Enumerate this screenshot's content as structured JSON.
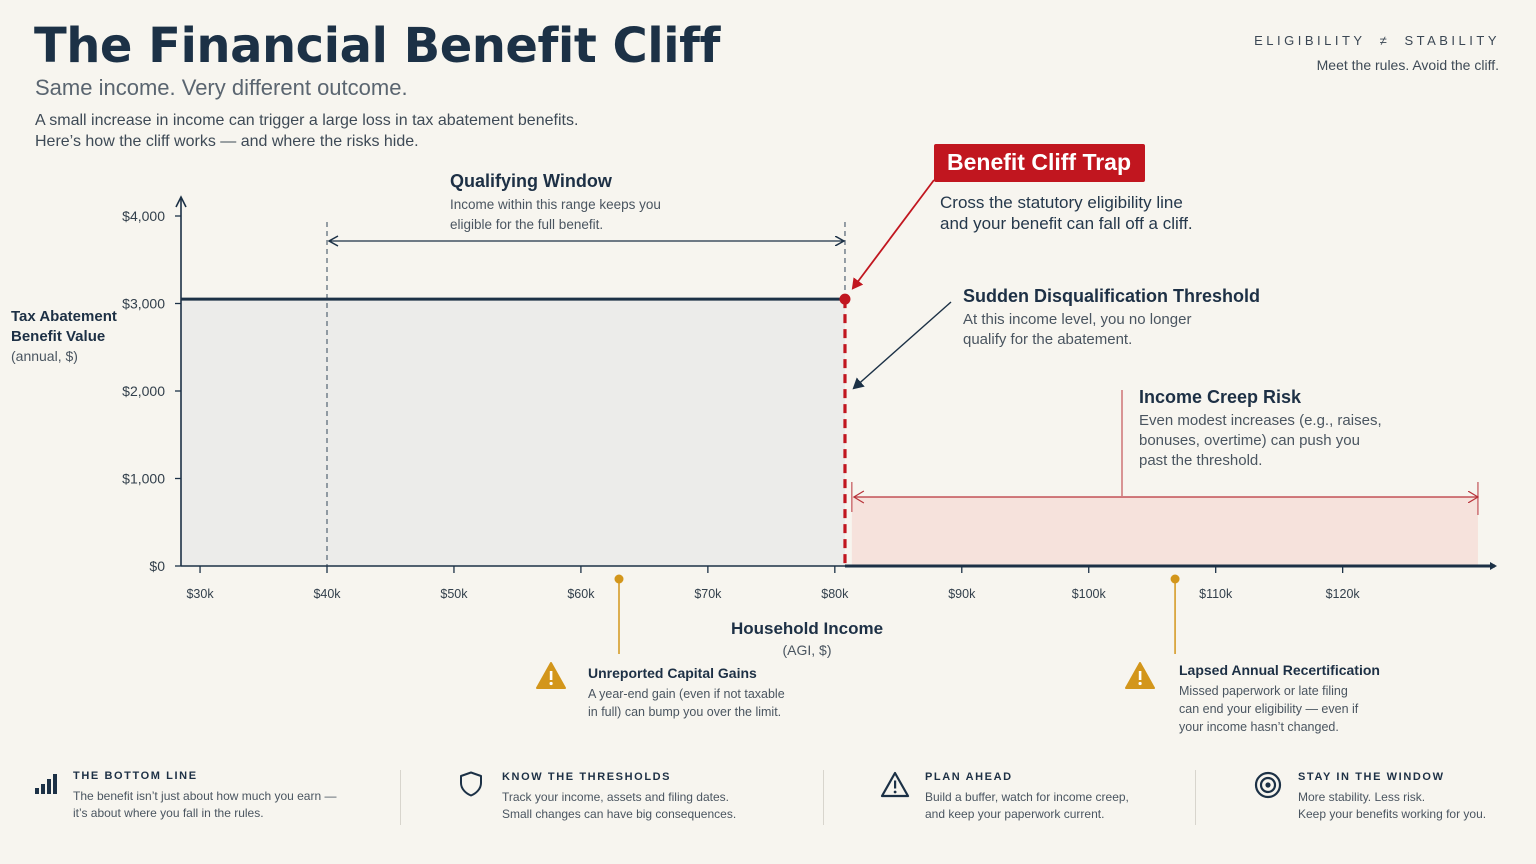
{
  "header": {
    "title": "The Financial Benefit Cliff",
    "subtitle": "Same income. Very different outcome.",
    "intro_line1": "A small increase in income can trigger a large loss in tax abatement benefits.",
    "intro_line2": "Here’s how the cliff works — and where the risks hide.",
    "tag": "ELIGIBILITY  ≠  STABILITY",
    "tag_sub": "Meet the rules. Avoid the cliff."
  },
  "chart_data": {
    "type": "area",
    "title": "The Financial Benefit Cliff",
    "xlabel": "Household Income",
    "xlabel_sub": "(AGI, $)",
    "ylabel": "Tax Abatement Benefit Value",
    "ylabel_sub": "(annual, $)",
    "x_ticks": [
      30000,
      40000,
      50000,
      60000,
      70000,
      80000,
      90000,
      100000,
      110000,
      120000
    ],
    "x_tick_labels": [
      "$30k",
      "$40k",
      "$50k",
      "$60k",
      "$70k",
      "$80k",
      "$90k",
      "$100k",
      "$110k",
      "$120k"
    ],
    "y_ticks": [
      0,
      1000,
      2000,
      3000,
      4000
    ],
    "y_tick_labels": [
      "$0",
      "$1,000",
      "$2,000",
      "$3,000",
      "$4,000"
    ],
    "xlim": [
      28500,
      132000
    ],
    "ylim": [
      0,
      4000
    ],
    "series": [
      {
        "x": [
          28500,
          80800,
          80800,
          132000
        ],
        "y": [
          3050,
          3050,
          0,
          0
        ]
      }
    ],
    "cliff_income": 80800,
    "cliff_benefit": 3050,
    "qualifying_window": [
      40000,
      80800
    ],
    "income_creep_range": [
      81500,
      130500
    ],
    "grid": false
  },
  "annotations": {
    "window": {
      "title": "Qualifying Window",
      "body1": "Income within this range keeps you",
      "body2": "eligible for the full benefit."
    },
    "trap": {
      "badge": "Benefit Cliff Trap",
      "body": "Cross the statutory eligibility line and your benefit can fall off a cliff."
    },
    "threshold": {
      "title": "Sudden Disqualification Threshold",
      "body1": "At this income level, you no longer",
      "body2": "qualify for the abatement."
    },
    "creep": {
      "title": "Income Creep Risk",
      "body1": "Even modest increases (e.g., raises,",
      "body2": "bonuses, overtime) can push you",
      "body3": "past the threshold."
    },
    "capital_gains": {
      "title": "Unreported Capital Gains",
      "body1": "A year-end gain (even if not taxable",
      "body2": "in full) can bump you over the limit.",
      "x": 63000
    },
    "recert": {
      "title": "Lapsed Annual Recertification",
      "body1": "Missed paperwork or late filing",
      "body2": "can end your eligibility — even if",
      "body3": "your income hasn’t changed.",
      "x": 106800
    }
  },
  "footer": [
    {
      "icon": "bar-chart-icon",
      "title": "THE BOTTOM LINE",
      "body1": "The benefit isn’t just about how much you earn —",
      "body2": "it’s about where you fall in the rules."
    },
    {
      "icon": "shield-icon",
      "title": "KNOW THE THRESHOLDS",
      "body1": "Track your income, assets and filing dates.",
      "body2": "Small changes can have big consequences."
    },
    {
      "icon": "warning-icon",
      "title": "PLAN AHEAD",
      "body1": "Build a buffer, watch for income creep,",
      "body2": "and keep your paperwork current."
    },
    {
      "icon": "target-icon",
      "title": "STAY IN THE WINDOW",
      "body1": "More stability. Less risk.",
      "body2": "Keep your benefits working for you."
    }
  ],
  "colors": {
    "navy": "#1c3146",
    "red": "#c1161f",
    "amber": "#d3961b",
    "area_fill": "#ececea",
    "creep_fill": "#f6e2dc",
    "background": "#f7f5ef"
  }
}
